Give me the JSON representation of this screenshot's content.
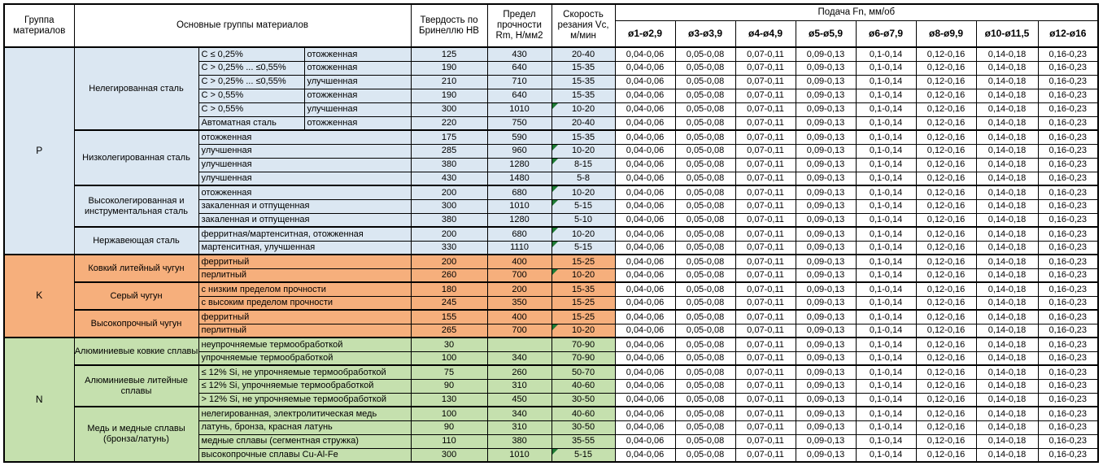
{
  "header": {
    "col_group": "Группа материалов",
    "col_materials": "Основные группы материалов",
    "col_hardness": "Твердость по Бринеллю HB",
    "col_strength": "Предел прочности Rm, Н/мм2",
    "col_speed": "Скорость резания Vc, м/мин",
    "feed_title": "Подача Fn, мм/об",
    "feed_cols": [
      "ø1-ø2,9",
      "ø3-ø3,9",
      "ø4-ø4,9",
      "ø5-ø5,9",
      "ø6-ø7,9",
      "ø8-ø9,9",
      "ø10-ø11,5",
      "ø12-ø16"
    ]
  },
  "feed_values": [
    "0,04-0,06",
    "0,05-0,08",
    "0,07-0,11",
    "0,09-0,13",
    "0,1-0,14",
    "0,12-0,16",
    "0,14-0,18",
    "0,16-0,23"
  ],
  "colors": {
    "group_p": "#DBE7F2",
    "group_k": "#F6AF7C",
    "group_n": "#C5E0AE",
    "note_triangle": "#1E7B34",
    "border": "#000000"
  },
  "groups": [
    {
      "label": "P",
      "color_key": "p",
      "subgroups": [
        {
          "label": "Нелегированная сталь",
          "rows": [
            {
              "details": [
                "C ≤ 0,25%",
                "отожженная"
              ],
              "hb": "125",
              "rm": "430",
              "vc": "20-40",
              "note": false
            },
            {
              "details": [
                "C > 0,25% ... ≤0,55%",
                "отожженная"
              ],
              "hb": "190",
              "rm": "640",
              "vc": "15-35",
              "note": false
            },
            {
              "details": [
                "C > 0,25% ... ≤0,55%",
                "улучшенная"
              ],
              "hb": "210",
              "rm": "710",
              "vc": "15-35",
              "note": false
            },
            {
              "details": [
                "C > 0,55%",
                "отожженная"
              ],
              "hb": "190",
              "rm": "640",
              "vc": "15-35",
              "note": false
            },
            {
              "details": [
                "C > 0,55%",
                "улучшенная"
              ],
              "hb": "300",
              "rm": "1010",
              "vc": "10-20",
              "note": true
            },
            {
              "details": [
                "Автоматная сталь",
                "отожженная"
              ],
              "hb": "220",
              "rm": "750",
              "vc": "20-40",
              "note": false
            }
          ]
        },
        {
          "label": "Низколегированная сталь",
          "rows": [
            {
              "details": [
                "отожженная"
              ],
              "hb": "175",
              "rm": "590",
              "vc": "15-35",
              "note": false
            },
            {
              "details": [
                "улучшенная"
              ],
              "hb": "285",
              "rm": "960",
              "vc": "10-20",
              "note": true
            },
            {
              "details": [
                "улучшенная"
              ],
              "hb": "380",
              "rm": "1280",
              "vc": "8-15",
              "note": true
            },
            {
              "details": [
                "улучшенная"
              ],
              "hb": "430",
              "rm": "1480",
              "vc": "5-8",
              "note": false
            }
          ]
        },
        {
          "label": "Высоколегированная и инструментальная сталь",
          "rows": [
            {
              "details": [
                "отожженная"
              ],
              "hb": "200",
              "rm": "680",
              "vc": "10-20",
              "note": true
            },
            {
              "details": [
                "закаленная и отпущенная"
              ],
              "hb": "300",
              "rm": "1010",
              "vc": "5-15",
              "note": true
            },
            {
              "details": [
                "закаленная и отпущенная"
              ],
              "hb": "380",
              "rm": "1280",
              "vc": "5-10",
              "note": false
            }
          ]
        },
        {
          "label": "Нержавеющая сталь",
          "rows": [
            {
              "details": [
                "ферритная/мартенситная, отожженная"
              ],
              "hb": "200",
              "rm": "680",
              "vc": "10-20",
              "note": true
            },
            {
              "details": [
                "мартенситная, улучшенная"
              ],
              "hb": "330",
              "rm": "1110",
              "vc": "5-15",
              "note": true
            }
          ]
        }
      ]
    },
    {
      "label": "K",
      "color_key": "k",
      "subgroups": [
        {
          "label": "Ковкий литейный чугун",
          "rows": [
            {
              "details": [
                "ферритный"
              ],
              "hb": "200",
              "rm": "400",
              "vc": "15-25",
              "note": false
            },
            {
              "details": [
                "перлитный"
              ],
              "hb": "260",
              "rm": "700",
              "vc": "10-20",
              "note": true
            }
          ]
        },
        {
          "label": "Серый чугун",
          "rows": [
            {
              "details": [
                "с низким пределом прочности"
              ],
              "hb": "180",
              "rm": "200",
              "vc": "15-35",
              "note": false
            },
            {
              "details": [
                "с высоким пределом прочности"
              ],
              "hb": "245",
              "rm": "350",
              "vc": "15-25",
              "note": false
            }
          ]
        },
        {
          "label": "Высокопрочный чугун",
          "rows": [
            {
              "details": [
                "ферритный"
              ],
              "hb": "155",
              "rm": "400",
              "vc": "15-25",
              "note": false
            },
            {
              "details": [
                "перлитный"
              ],
              "hb": "265",
              "rm": "700",
              "vc": "10-20",
              "note": true
            }
          ]
        }
      ]
    },
    {
      "label": "N",
      "color_key": "n",
      "subgroups": [
        {
          "label": "Алюминиевые ковкие сплавы",
          "rows": [
            {
              "details": [
                "неупрочняемые термообработкой"
              ],
              "hb": "30",
              "rm": "",
              "vc": "70-90",
              "note": false
            },
            {
              "details": [
                "упрочняемые термообработкой"
              ],
              "hb": "100",
              "rm": "340",
              "vc": "70-90",
              "note": false
            }
          ]
        },
        {
          "label": "Алюминиевые литейные сплавы",
          "rows": [
            {
              "details": [
                "≤ 12% Si, не упрочняемые термообработкой"
              ],
              "hb": "75",
              "rm": "260",
              "vc": "50-70",
              "note": false
            },
            {
              "details": [
                "≤ 12% Si, упрочняемые термообработкой"
              ],
              "hb": "90",
              "rm": "310",
              "vc": "40-60",
              "note": false
            },
            {
              "details": [
                "> 12% Si, не упрочняемые термообработкой"
              ],
              "hb": "130",
              "rm": "450",
              "vc": "30-50",
              "note": false
            }
          ]
        },
        {
          "label": "Медь и медные сплавы (бронза/латунь)",
          "rows": [
            {
              "details": [
                "нелегированная, электролитическая медь"
              ],
              "hb": "100",
              "rm": "340",
              "vc": "40-60",
              "note": false
            },
            {
              "details": [
                "латунь, бронза, красная латунь"
              ],
              "hb": "90",
              "rm": "310",
              "vc": "30-50",
              "note": false
            },
            {
              "details": [
                "медные сплавы (сегментная стружка)"
              ],
              "hb": "110",
              "rm": "380",
              "vc": "35-55",
              "note": false
            },
            {
              "details": [
                "высокопрочные сплавы Cu-Al-Fe"
              ],
              "hb": "300",
              "rm": "1010",
              "vc": "5-15",
              "note": true
            }
          ]
        }
      ]
    }
  ]
}
